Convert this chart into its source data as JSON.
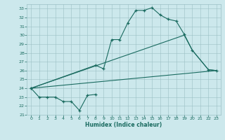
{
  "xlabel": "Humidex (Indice chaleur)",
  "bg_color": "#cce8ec",
  "grid_color": "#9bbfc4",
  "line_color": "#1a6b60",
  "xlim": [
    -0.5,
    23.5
  ],
  "ylim": [
    21,
    33.5
  ],
  "xticks": [
    0,
    1,
    2,
    3,
    4,
    5,
    6,
    7,
    8,
    9,
    10,
    11,
    12,
    13,
    14,
    15,
    16,
    17,
    18,
    19,
    20,
    21,
    22,
    23
  ],
  "yticks": [
    21,
    22,
    23,
    24,
    25,
    26,
    27,
    28,
    29,
    30,
    31,
    32,
    33
  ],
  "curve1_x": [
    0,
    1,
    2,
    3,
    4,
    5,
    6,
    7,
    8
  ],
  "curve1_y": [
    24,
    23,
    23,
    23,
    22.5,
    22.5,
    21.5,
    23.2,
    23.3
  ],
  "curve2_x": [
    0,
    8,
    9,
    10,
    11,
    12,
    13,
    14,
    15,
    16,
    17,
    18,
    19,
    20,
    22,
    23
  ],
  "curve2_y": [
    24,
    26.6,
    26.2,
    29.5,
    29.5,
    31.4,
    32.8,
    32.8,
    33.1,
    32.3,
    31.8,
    31.6,
    30.1,
    28.3,
    26.1,
    26.0
  ],
  "curve3_x": [
    0,
    23
  ],
  "curve3_y": [
    24,
    26.0
  ],
  "curve4_x": [
    0,
    19,
    20,
    22,
    23
  ],
  "curve4_y": [
    24,
    30.0,
    28.3,
    26.1,
    26.0
  ],
  "xlabel_fontsize": 5.5,
  "tick_fontsize": 4.5
}
